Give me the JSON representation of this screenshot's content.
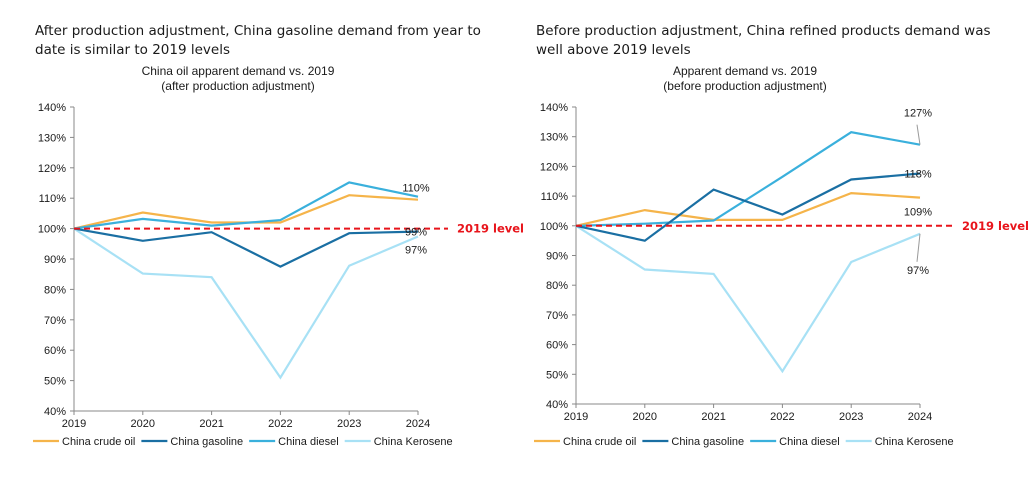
{
  "headlines": {
    "left": "After production adjustment, China gasoline demand from year to date is similar to 2019 levels",
    "right": "Before production adjustment, China refined products demand was well above 2019 levels"
  },
  "colors": {
    "crude": "#f5b44a",
    "gasoline": "#1a6fa3",
    "diesel": "#3ab0dc",
    "kerosene": "#a8e1f5",
    "reference": "#e8141b",
    "axis": "#888888"
  },
  "chart_data": [
    {
      "type": "line",
      "title": "China oil apparent demand vs. 2019",
      "subtitle": "(after production adjustment)",
      "xlabel": "",
      "ylabel": "",
      "x": [
        "2019",
        "2020",
        "2021",
        "2022",
        "2023",
        "2024"
      ],
      "ylim": [
        40,
        140
      ],
      "yticks": [
        "40%",
        "50%",
        "60%",
        "70%",
        "80%",
        "90%",
        "100%",
        "110%",
        "120%",
        "130%",
        "140%"
      ],
      "grid": false,
      "legend": "bottom",
      "series": [
        {
          "name": "China crude oil",
          "key": "crude",
          "values": [
            100,
            105.3,
            102,
            102,
            111,
            109.5
          ]
        },
        {
          "name": "China gasoline",
          "key": "gasoline",
          "values": [
            100,
            96,
            98.8,
            87.5,
            98.5,
            99
          ]
        },
        {
          "name": "China diesel",
          "key": "diesel",
          "values": [
            100,
            103.2,
            101,
            102.8,
            115.2,
            110.5
          ]
        },
        {
          "name": "China Kerosene",
          "key": "kerosene",
          "values": [
            100,
            85.2,
            84,
            51,
            87.8,
            97.4
          ]
        }
      ],
      "reference_line": {
        "value": 100,
        "label": "2019 level"
      },
      "annotations": [
        {
          "text": "110%",
          "series": "diesel",
          "x": "2024"
        },
        {
          "text": "99%",
          "series": "gasoline",
          "x": "2024"
        },
        {
          "text": "97%",
          "series": "kerosene",
          "x": "2024"
        }
      ]
    },
    {
      "type": "line",
      "title": "Apparent demand vs. 2019",
      "subtitle": "(before production adjustment)",
      "xlabel": "",
      "ylabel": "",
      "x": [
        "2019",
        "2020",
        "2021",
        "2022",
        "2023",
        "2024"
      ],
      "ylim": [
        40,
        140
      ],
      "yticks": [
        "40%",
        "50%",
        "60%",
        "70%",
        "80%",
        "90%",
        "100%",
        "110%",
        "120%",
        "130%",
        "140%"
      ],
      "grid": false,
      "legend": "bottom",
      "series": [
        {
          "name": "China crude oil",
          "key": "crude",
          "values": [
            100,
            105.3,
            102,
            102,
            111,
            109.5
          ]
        },
        {
          "name": "China gasoline",
          "key": "gasoline",
          "values": [
            100,
            95,
            112.2,
            103.8,
            115.6,
            117.6
          ]
        },
        {
          "name": "China diesel",
          "key": "diesel",
          "values": [
            100,
            100.7,
            101.8,
            116.5,
            131.5,
            127.3
          ]
        },
        {
          "name": "China Kerosene",
          "key": "kerosene",
          "values": [
            100,
            85.3,
            83.8,
            51,
            87.8,
            97.3
          ]
        }
      ],
      "reference_line": {
        "value": 100,
        "label": "2019 level"
      },
      "annotations": [
        {
          "text": "127%",
          "series": "diesel",
          "x": "2024"
        },
        {
          "text": "118%",
          "series": "gasoline",
          "x": "2024"
        },
        {
          "text": "109%",
          "series": "crude",
          "x": "2024"
        },
        {
          "text": "97%",
          "series": "kerosene",
          "x": "2024"
        }
      ]
    }
  ]
}
